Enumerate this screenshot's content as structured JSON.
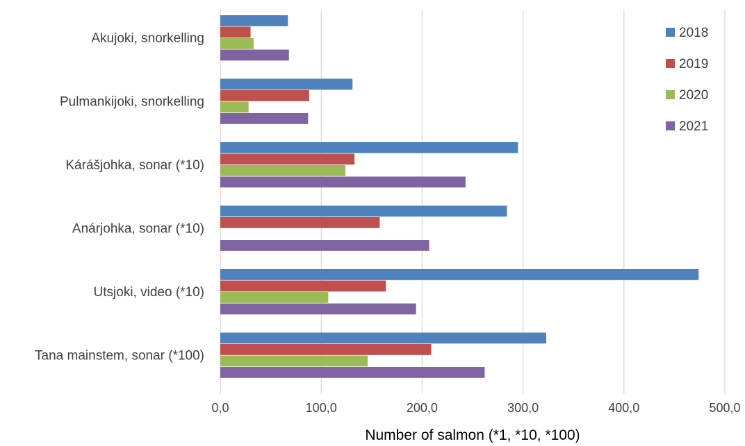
{
  "chart_data": {
    "type": "bar",
    "orientation": "horizontal",
    "title": "",
    "xlabel": "Number of salmon (*1, *10, *100)",
    "ylabel": "",
    "categories": [
      "Akujoki, snorkelling",
      "Pulmankijoki, snorkelling",
      "Kárášjohka, sonar (*10)",
      "Anárjohka, sonar (*10)",
      "Utsjoki, video (*10)",
      "Tana mainstem, sonar (*100)"
    ],
    "series": [
      {
        "name": "2018",
        "color": "#4f81bd",
        "values": [
          67,
          131,
          295,
          284,
          474,
          323
        ]
      },
      {
        "name": "2019",
        "color": "#c0504d",
        "values": [
          30,
          88,
          133,
          158,
          164,
          209
        ]
      },
      {
        "name": "2020",
        "color": "#9bbb59",
        "values": [
          33,
          28,
          124,
          0,
          107,
          146
        ]
      },
      {
        "name": "2021",
        "color": "#8064a2",
        "values": [
          68,
          87,
          243,
          207,
          194,
          262
        ]
      }
    ],
    "xlim": [
      0,
      500
    ],
    "xticks": [
      0,
      100,
      200,
      300,
      400,
      500
    ],
    "xtick_labels": [
      "0,0",
      "100,0",
      "200,0",
      "300,0",
      "400,0",
      "500,0"
    ],
    "grid": true,
    "legend_position": "top-right"
  }
}
